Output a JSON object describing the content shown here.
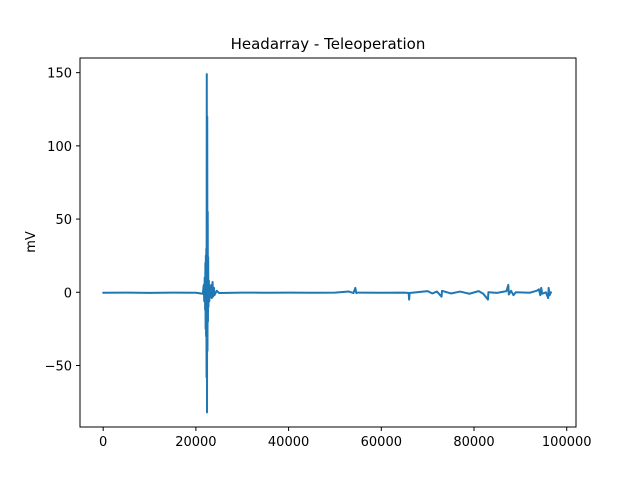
{
  "chart_data": {
    "type": "line",
    "title": "Headarray - Teleoperation",
    "xlabel": "",
    "ylabel": "mV",
    "xlim": [
      -5000,
      102000
    ],
    "ylim": [
      -92,
      160
    ],
    "x_ticks": [
      0,
      20000,
      40000,
      60000,
      80000,
      100000
    ],
    "x_tick_labels": [
      "0",
      "20000",
      "40000",
      "60000",
      "80000",
      "100000"
    ],
    "y_ticks": [
      -50,
      0,
      50,
      100,
      150
    ],
    "y_tick_labels": [
      "−50",
      "0",
      "50",
      "100",
      "150"
    ],
    "grid": false,
    "legend": "none",
    "series": [
      {
        "color": "#1f77b4",
        "points": [
          [
            0,
            -0.3
          ],
          [
            5000,
            -0.2
          ],
          [
            10000,
            -0.4
          ],
          [
            15000,
            -0.2
          ],
          [
            20000,
            -0.3
          ],
          [
            21500,
            -1
          ],
          [
            21700,
            5
          ],
          [
            21800,
            -6
          ],
          [
            21900,
            10
          ],
          [
            22000,
            -12
          ],
          [
            22050,
            20
          ],
          [
            22100,
            -25
          ],
          [
            22150,
            25
          ],
          [
            22200,
            -30
          ],
          [
            22250,
            30
          ],
          [
            22300,
            -58
          ],
          [
            22350,
            149
          ],
          [
            22400,
            -82
          ],
          [
            22450,
            120
          ],
          [
            22500,
            -40
          ],
          [
            22550,
            55
          ],
          [
            22600,
            -20
          ],
          [
            22650,
            24
          ],
          [
            22700,
            -10
          ],
          [
            22800,
            8
          ],
          [
            22900,
            -6
          ],
          [
            23000,
            4
          ],
          [
            23100,
            -3
          ],
          [
            23300,
            5
          ],
          [
            23400,
            -4
          ],
          [
            23600,
            7
          ],
          [
            23700,
            -3
          ],
          [
            23900,
            3
          ],
          [
            24000,
            -2
          ],
          [
            24500,
            1
          ],
          [
            25000,
            -0.5
          ],
          [
            30000,
            -0.2
          ],
          [
            35000,
            -0.3
          ],
          [
            40000,
            -0.2
          ],
          [
            45000,
            -0.3
          ],
          [
            50000,
            -0.2
          ],
          [
            53000,
            0.5
          ],
          [
            54000,
            -0.5
          ],
          [
            54400,
            3
          ],
          [
            54600,
            -0.5
          ],
          [
            55000,
            -0.2
          ],
          [
            60000,
            -0.3
          ],
          [
            65000,
            -0.2
          ],
          [
            65900,
            -0.5
          ],
          [
            66000,
            -5
          ],
          [
            66100,
            -0.5
          ],
          [
            70000,
            0.8
          ],
          [
            71000,
            -0.8
          ],
          [
            72000,
            0.5
          ],
          [
            73000,
            -3
          ],
          [
            73100,
            1
          ],
          [
            75000,
            -0.8
          ],
          [
            77000,
            0.5
          ],
          [
            79000,
            -1
          ],
          [
            81000,
            0.8
          ],
          [
            82000,
            -1
          ],
          [
            83000,
            -5
          ],
          [
            83100,
            0
          ],
          [
            85000,
            -0.4
          ],
          [
            87000,
            0.8
          ],
          [
            87400,
            5
          ],
          [
            87500,
            -1.5
          ],
          [
            88000,
            1
          ],
          [
            88500,
            -2
          ],
          [
            89000,
            0
          ],
          [
            92000,
            -0.3
          ],
          [
            93500,
            1
          ],
          [
            94000,
            2
          ],
          [
            94300,
            -2
          ],
          [
            94500,
            3
          ],
          [
            94700,
            -1
          ],
          [
            95500,
            0
          ],
          [
            96000,
            -4
          ],
          [
            96100,
            3
          ],
          [
            96300,
            -2
          ],
          [
            96600,
            0
          ]
        ]
      }
    ]
  }
}
